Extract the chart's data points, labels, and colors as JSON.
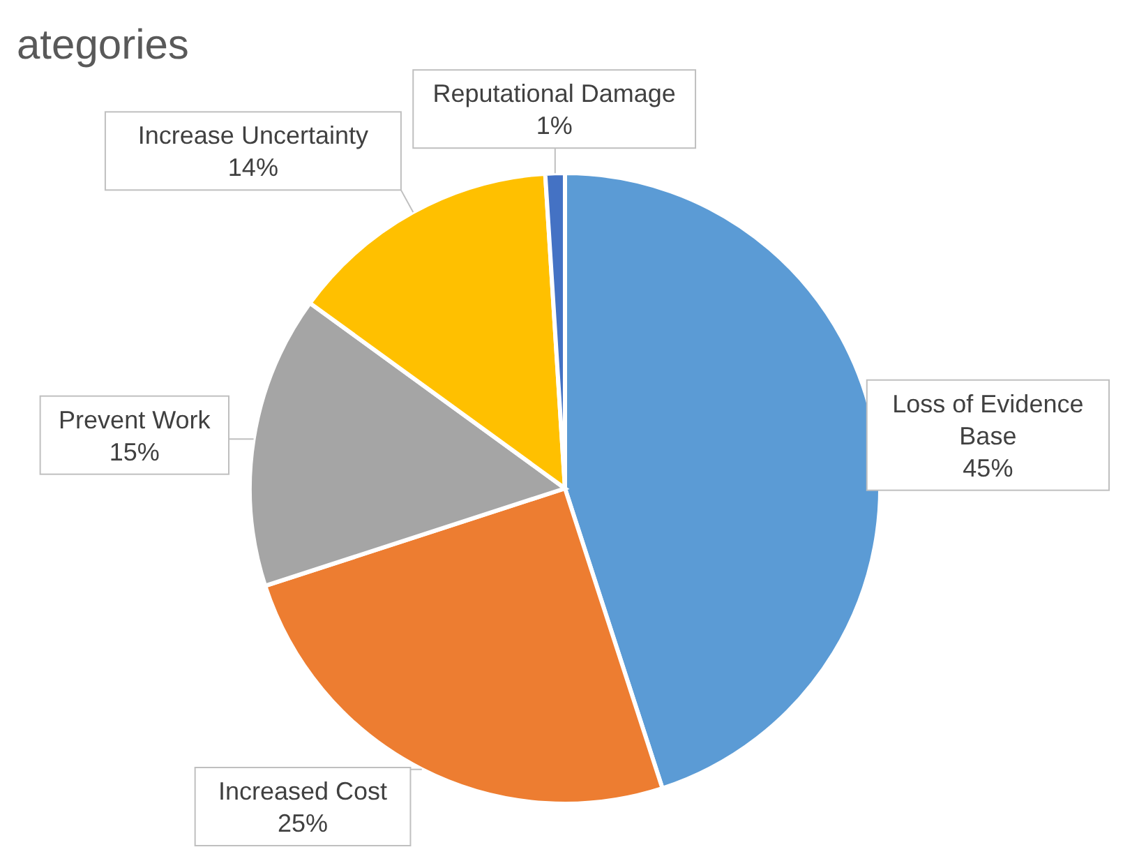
{
  "chart_data": {
    "type": "pie",
    "title": "ategories",
    "categories": [
      "Loss of Evidence Base",
      "Increased Cost",
      "Prevent Work",
      "Increase Uncertainty",
      "Reputational Damage"
    ],
    "values": [
      45,
      25,
      15,
      14,
      1
    ],
    "value_labels": [
      "45%",
      "25%",
      "15%",
      "14%",
      "1%"
    ],
    "colors": [
      "#5b9bd5",
      "#ed7d31",
      "#a5a5a5",
      "#ffc000",
      "#4472c4"
    ],
    "legend": false
  }
}
